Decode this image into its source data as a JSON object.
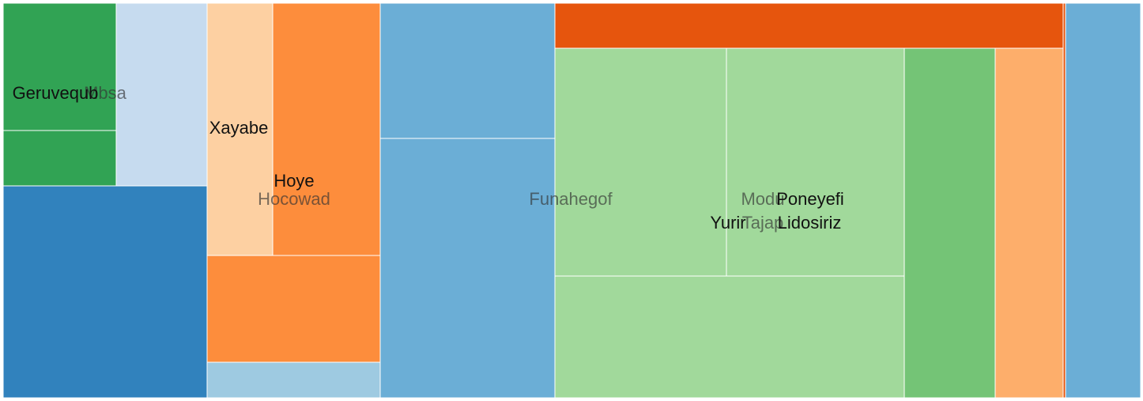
{
  "chart_data": {
    "type": "treemap",
    "groups": [
      {
        "name": "Mbsa",
        "children": [
          {
            "name": "Geruvequb",
            "value": 120,
            "color": "#31a354"
          },
          {
            "name": "",
            "value": 55,
            "color": "#31a354"
          },
          {
            "name": "",
            "value": 82,
            "color": "#c6dbef"
          },
          {
            "name": "",
            "value": 168,
            "color": "#3182bd"
          }
        ]
      },
      {
        "name": "Hocowad",
        "children": [
          {
            "name": "Xayabe",
            "value": 63,
            "color": "#fdd0a2"
          },
          {
            "name": "Hoye",
            "value": 104,
            "color": "#fd8d3c"
          },
          {
            "name": "",
            "value": 70,
            "color": "#fd8d3c"
          },
          {
            "name": "",
            "value": 24,
            "color": "#9ecae1"
          }
        ]
      },
      {
        "name": "Funahegof",
        "children": [
          {
            "name": "",
            "value": 91,
            "color": "#6baed6"
          },
          {
            "name": "",
            "value": 176,
            "color": "#6baed6"
          }
        ]
      },
      {
        "name": "Modu",
        "children": [
          {
            "name": "",
            "value": 86,
            "color": "#e6550d"
          }
        ]
      },
      {
        "name": "Tajap",
        "children": [
          {
            "name": "Yurir",
            "value": 148,
            "color": "#a1d99b"
          },
          {
            "name": "Poneyefi",
            "value": 153,
            "color": "#a1d99b"
          },
          {
            "name": "Lidosiriz",
            "value": 230,
            "color": "#a1d99b"
          },
          {
            "name": "",
            "value": 119,
            "color": "#74c476"
          },
          {
            "name": "",
            "value": 90,
            "color": "#fdae6b"
          },
          {
            "name": "",
            "value": 5,
            "color": "#e6550d"
          }
        ]
      },
      {
        "name": "",
        "children": [
          {
            "name": "",
            "value": 104,
            "color": "#6baed6"
          }
        ]
      }
    ]
  }
}
